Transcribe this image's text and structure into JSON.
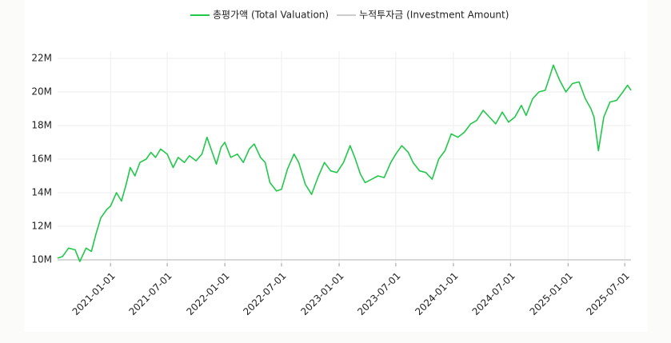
{
  "chart_data": {
    "type": "line",
    "x": [
      "2020-07-16",
      "2020-08-01",
      "2020-08-20",
      "2020-09-10",
      "2020-09-25",
      "2020-10-15",
      "2020-11-01",
      "2020-11-15",
      "2020-12-01",
      "2020-12-20",
      "2021-01-01",
      "2021-01-20",
      "2021-02-05",
      "2021-02-20",
      "2021-03-05",
      "2021-03-20",
      "2021-04-05",
      "2021-04-25",
      "2021-05-10",
      "2021-05-25",
      "2021-06-10",
      "2021-07-01",
      "2021-07-20",
      "2021-08-05",
      "2021-08-25",
      "2021-09-10",
      "2021-10-01",
      "2021-10-20",
      "2021-11-05",
      "2021-11-20",
      "2021-12-05",
      "2021-12-20",
      "2022-01-01",
      "2022-01-20",
      "2022-02-10",
      "2022-03-01",
      "2022-03-20",
      "2022-04-05",
      "2022-04-25",
      "2022-05-10",
      "2022-05-25",
      "2022-06-15",
      "2022-07-01",
      "2022-07-20",
      "2022-08-10",
      "2022-08-25",
      "2022-09-15",
      "2022-10-05",
      "2022-10-25",
      "2022-11-15",
      "2022-12-05",
      "2022-12-25",
      "2023-01-15",
      "2023-02-05",
      "2023-02-20",
      "2023-03-10",
      "2023-03-25",
      "2023-04-15",
      "2023-05-05",
      "2023-05-25",
      "2023-06-15",
      "2023-07-01",
      "2023-07-20",
      "2023-08-10",
      "2023-08-25",
      "2023-09-15",
      "2023-10-05",
      "2023-10-25",
      "2023-11-15",
      "2023-12-05",
      "2023-12-25",
      "2024-01-15",
      "2024-02-05",
      "2024-02-25",
      "2024-03-15",
      "2024-04-05",
      "2024-04-25",
      "2024-05-15",
      "2024-06-05",
      "2024-06-25",
      "2024-07-15",
      "2024-08-05",
      "2024-08-20",
      "2024-09-10",
      "2024-09-30",
      "2024-10-20",
      "2024-11-05",
      "2024-11-15",
      "2024-12-05",
      "2024-12-25",
      "2025-01-15",
      "2025-02-05",
      "2025-02-25",
      "2025-03-15",
      "2025-03-25",
      "2025-04-08",
      "2025-04-25",
      "2025-05-15",
      "2025-06-05",
      "2025-06-25",
      "2025-07-10",
      "2025-07-21"
    ],
    "series": [
      {
        "name": "총평가액 (Total Valuation)",
        "color": "#22c84a",
        "values": [
          10100000,
          10200000,
          10700000,
          10600000,
          9900000,
          10700000,
          10500000,
          11500000,
          12500000,
          13000000,
          13200000,
          14000000,
          13500000,
          14500000,
          15500000,
          15000000,
          15800000,
          16000000,
          16400000,
          16100000,
          16600000,
          16300000,
          15500000,
          16100000,
          15800000,
          16200000,
          15900000,
          16300000,
          17300000,
          16500000,
          15700000,
          16700000,
          17000000,
          16100000,
          16300000,
          15800000,
          16600000,
          16900000,
          16100000,
          15800000,
          14600000,
          14100000,
          14200000,
          15400000,
          16300000,
          15800000,
          14500000,
          13900000,
          14900000,
          15800000,
          15300000,
          15200000,
          15800000,
          16800000,
          16100000,
          15100000,
          14600000,
          14800000,
          15000000,
          14900000,
          15800000,
          16300000,
          16800000,
          16400000,
          15800000,
          15300000,
          15200000,
          14800000,
          16000000,
          16500000,
          17500000,
          17300000,
          17600000,
          18100000,
          18300000,
          18900000,
          18500000,
          18100000,
          18800000,
          18200000,
          18500000,
          19200000,
          18600000,
          19600000,
          20000000,
          20100000,
          21000000,
          21600000,
          20700000,
          20000000,
          20500000,
          20600000,
          19600000,
          19000000,
          18500000,
          16500000,
          18500000,
          19400000,
          19500000,
          20000000,
          20400000,
          20100000
        ]
      },
      {
        "name": "누적투자금 (Investment Amount)",
        "color": "#cccccc",
        "values": [
          10000000,
          10000000,
          10000000,
          10000000,
          10000000,
          10000000,
          10000000,
          10000000,
          10000000,
          10000000,
          10000000,
          10000000,
          10000000,
          10000000,
          10000000,
          10000000,
          10000000,
          10000000,
          10000000,
          10000000,
          10000000,
          10000000,
          10000000,
          10000000,
          10000000,
          10000000,
          10000000,
          10000000,
          10000000,
          10000000,
          10000000,
          10000000,
          10000000,
          10000000,
          10000000,
          10000000,
          10000000,
          10000000,
          10000000,
          10000000,
          10000000,
          10000000,
          10000000,
          10000000,
          10000000,
          10000000,
          10000000,
          10000000,
          10000000,
          10000000,
          10000000,
          10000000,
          10000000,
          10000000,
          10000000,
          10000000,
          10000000,
          10000000,
          10000000,
          10000000,
          10000000,
          10000000,
          10000000,
          10000000,
          10000000,
          10000000,
          10000000,
          10000000,
          10000000,
          10000000,
          10000000,
          10000000,
          10000000,
          10000000,
          10000000,
          10000000,
          10000000,
          10000000,
          10000000,
          10000000,
          10000000,
          10000000,
          10000000,
          10000000,
          10000000,
          10000000,
          10000000,
          10000000,
          10000000,
          10000000,
          10000000,
          10000000,
          10000000,
          10000000,
          10000000,
          10000000,
          10000000,
          10000000,
          10000000,
          10000000,
          10000000,
          10000000
        ]
      }
    ],
    "xlim": [
      "2020-07-16",
      "2025-07-21"
    ],
    "xticks": [
      "2021-01-01",
      "2021-07-01",
      "2022-01-01",
      "2022-07-01",
      "2023-01-01",
      "2023-07-01",
      "2024-01-01",
      "2024-07-01",
      "2025-01-01",
      "2025-07-01"
    ],
    "ylim": [
      9800000,
      22400000
    ],
    "yticks": [
      {
        "value": 10000000,
        "label": "10M"
      },
      {
        "value": 12000000,
        "label": "12M"
      },
      {
        "value": 14000000,
        "label": "14M"
      },
      {
        "value": 16000000,
        "label": "16M"
      },
      {
        "value": 18000000,
        "label": "18M"
      },
      {
        "value": 20000000,
        "label": "20M"
      },
      {
        "value": 22000000,
        "label": "22M"
      }
    ],
    "grid": true,
    "legend": "top"
  }
}
